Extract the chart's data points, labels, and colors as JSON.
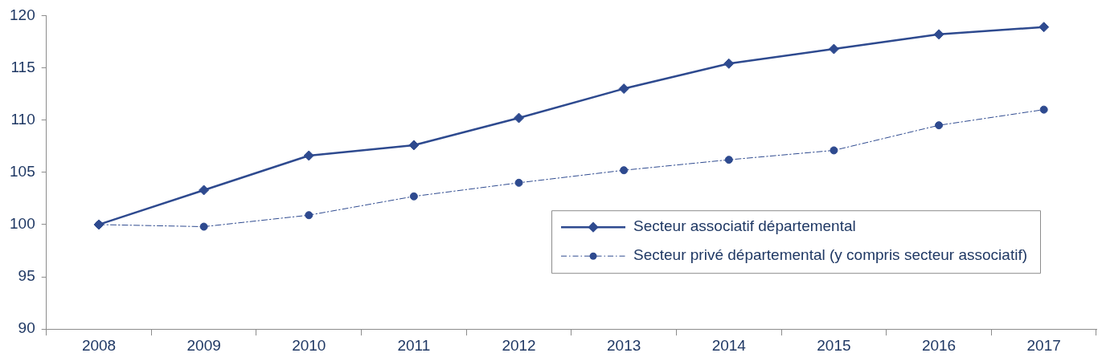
{
  "chart_data": {
    "type": "line",
    "categories": [
      "2008",
      "2009",
      "2010",
      "2011",
      "2012",
      "2013",
      "2014",
      "2015",
      "2016",
      "2017"
    ],
    "series": [
      {
        "name": "Secteur associatif départemental",
        "color": "#2e4a8f",
        "marker": "diamond",
        "line_style": "solid",
        "values": [
          100,
          103.3,
          106.6,
          107.6,
          110.2,
          113.0,
          115.4,
          116.8,
          118.2,
          118.9
        ]
      },
      {
        "name": "Secteur privé départemental (y compris secteur associatif)",
        "color": "#2e4a8f",
        "marker": "circle",
        "line_style": "dashed",
        "values": [
          100,
          99.8,
          100.9,
          102.7,
          104.0,
          105.2,
          106.2,
          107.1,
          109.5,
          111.0
        ]
      }
    ],
    "ylim": [
      90,
      120
    ],
    "yticks": [
      90,
      95,
      100,
      105,
      110,
      115,
      120
    ],
    "grid": false,
    "legend": "bottom right"
  }
}
